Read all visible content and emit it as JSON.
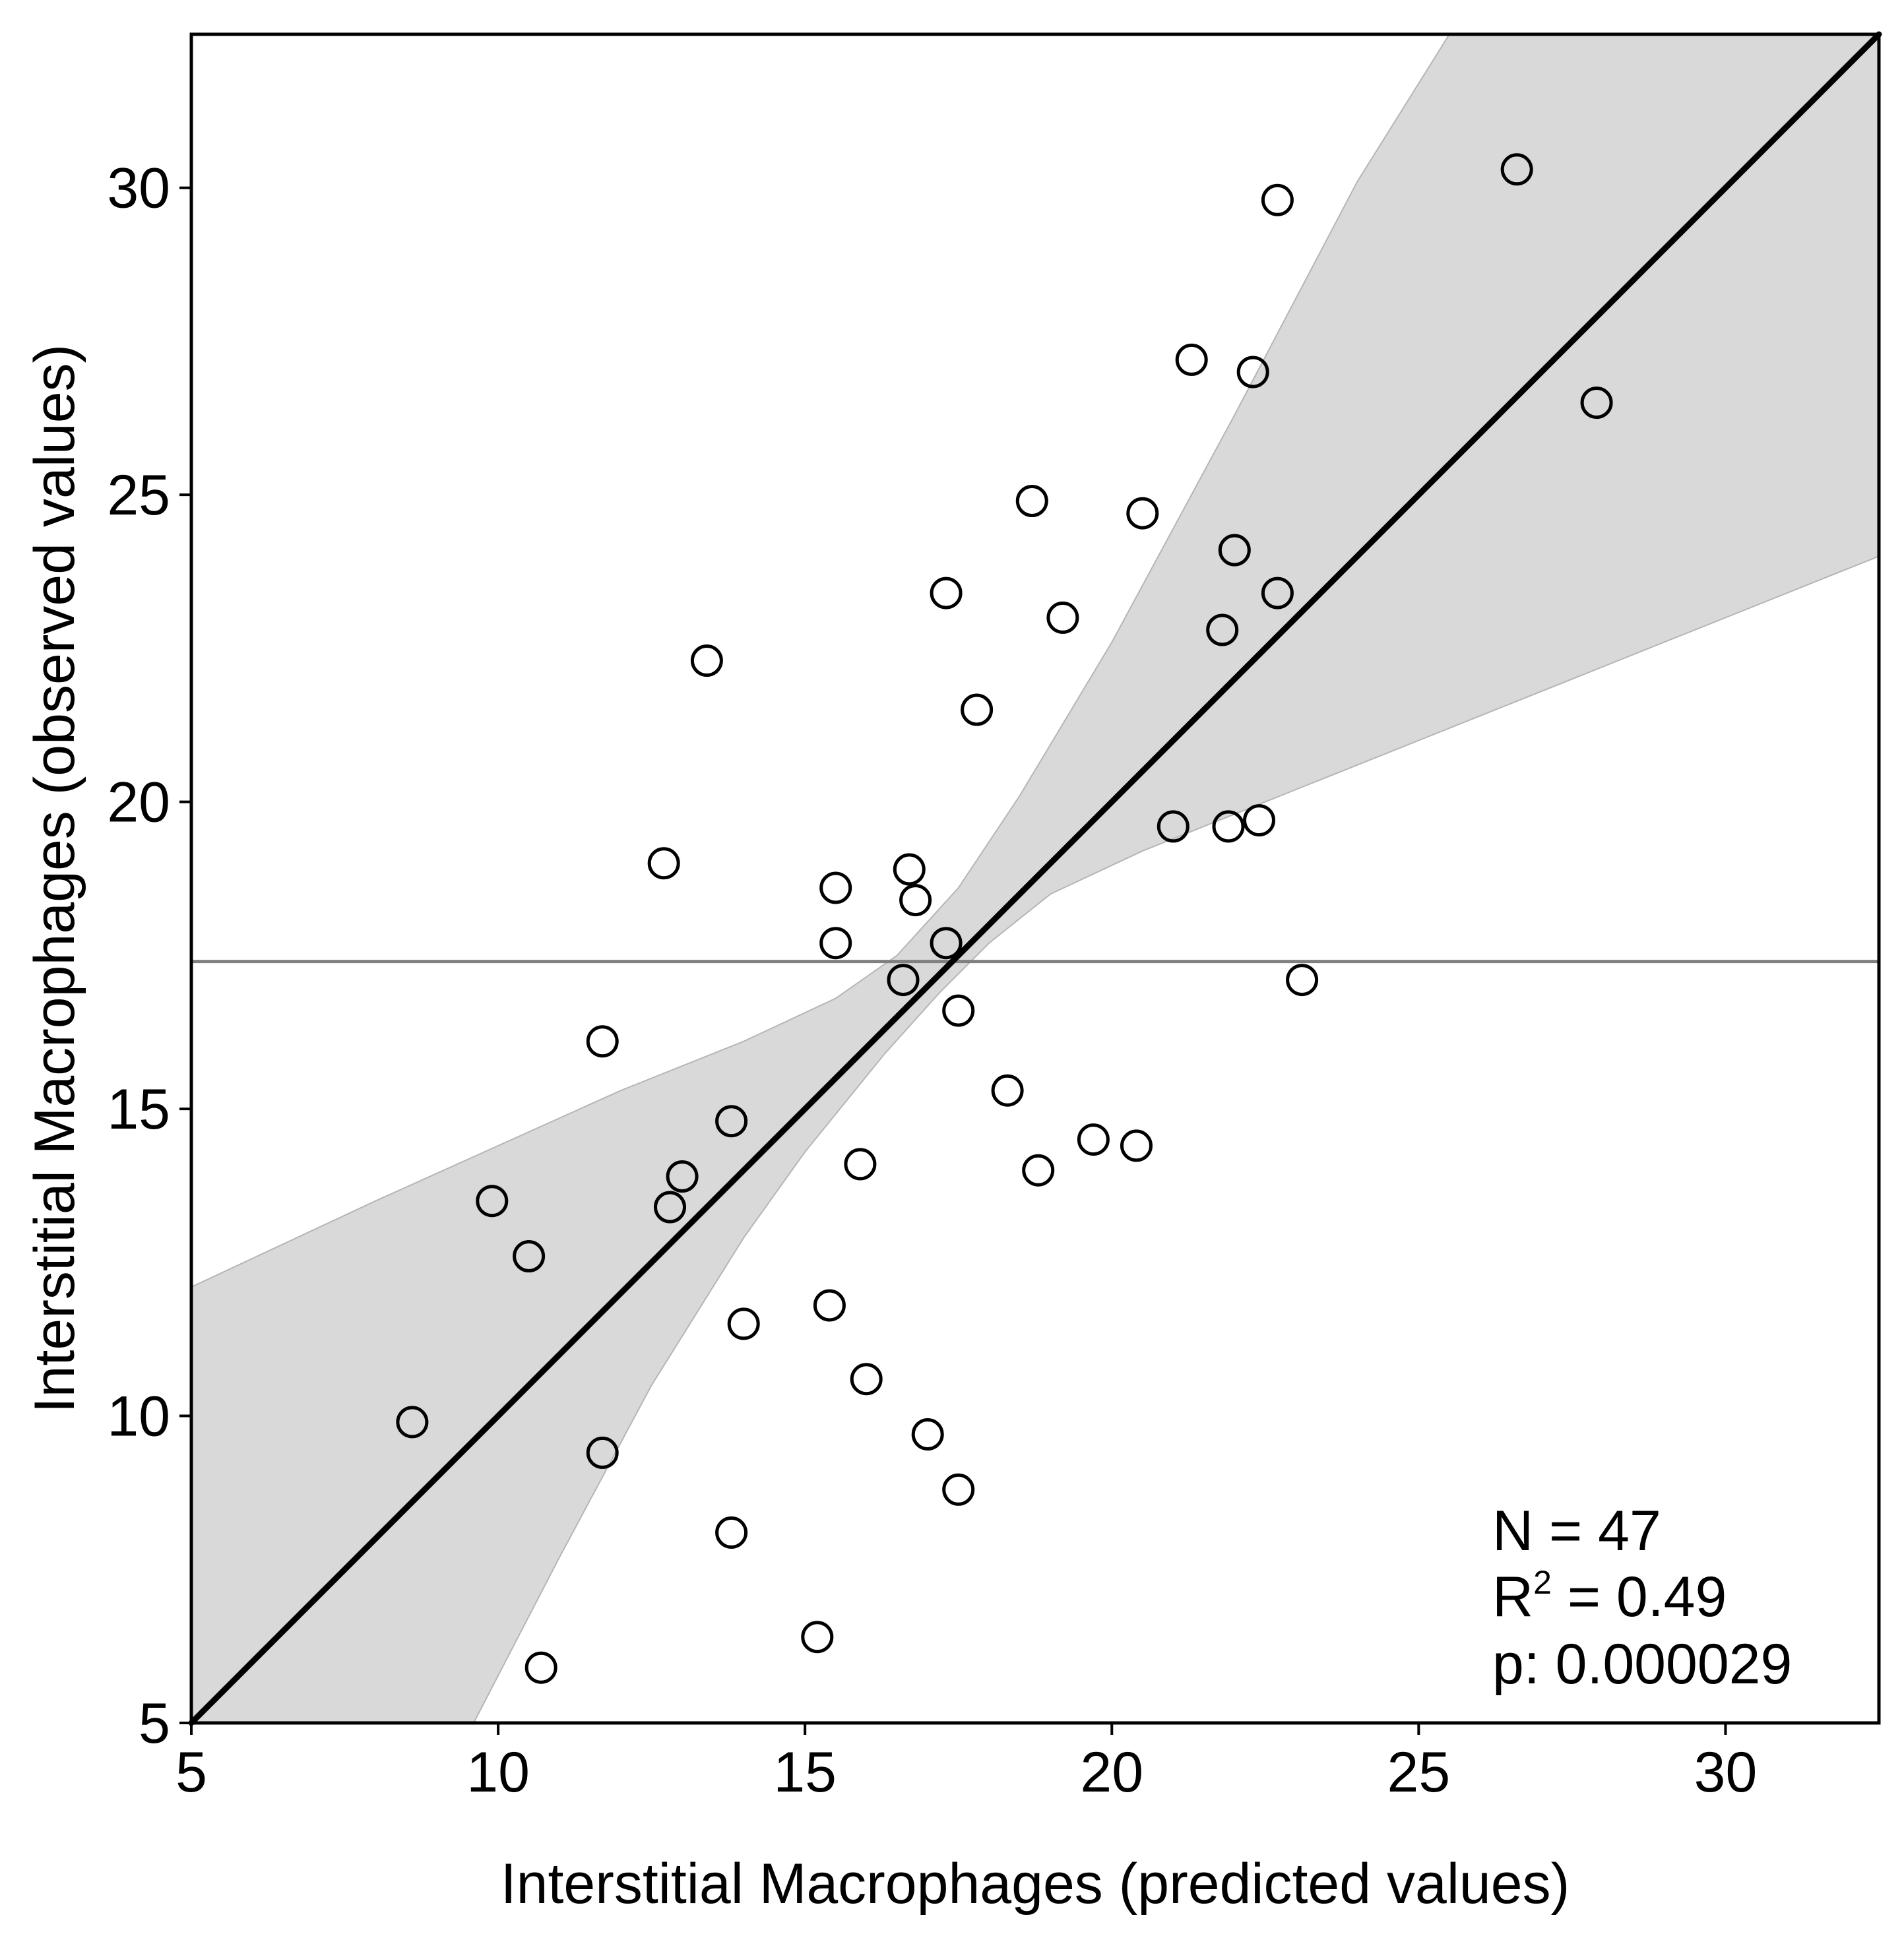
{
  "chart_data": {
    "type": "scatter",
    "xlabel": "Interstitial Macrophages (predicted values)",
    "ylabel": "Interstitial Macrophages (observed values)",
    "xlim": [
      5,
      32.5
    ],
    "ylim": [
      5,
      32.5
    ],
    "x_ticks": [
      5,
      10,
      15,
      20,
      25,
      30
    ],
    "y_ticks": [
      5,
      10,
      15,
      20,
      25,
      30
    ],
    "grid": false,
    "mean_line": {
      "y": 17.4,
      "color": "#808080"
    },
    "fit_line": {
      "from": [
        5,
        5
      ],
      "to": [
        32.5,
        32.5
      ],
      "color": "#000000"
    },
    "confidence_band": {
      "color": "#d9d9d9",
      "upper": [
        [
          5,
          12.1
        ],
        [
          8,
          13.5
        ],
        [
          10,
          14.4
        ],
        [
          12,
          15.3
        ],
        [
          14,
          16.1
        ],
        [
          15.5,
          16.8
        ],
        [
          16.5,
          17.5
        ],
        [
          17.5,
          18.6
        ],
        [
          18.5,
          20.1
        ],
        [
          20,
          22.6
        ],
        [
          22,
          26.3
        ],
        [
          24,
          30.1
        ],
        [
          25.5,
          32.5
        ]
      ],
      "lower": [
        [
          9.6,
          5
        ],
        [
          11,
          7.7
        ],
        [
          12.5,
          10.5
        ],
        [
          14,
          12.9
        ],
        [
          15,
          14.3
        ],
        [
          16.3,
          15.9
        ],
        [
          17.2,
          16.9
        ],
        [
          18,
          17.7
        ],
        [
          19,
          18.5
        ],
        [
          20.5,
          19.2
        ],
        [
          23,
          20.2
        ],
        [
          26,
          21.4
        ],
        [
          29,
          22.6
        ],
        [
          32.5,
          24
        ]
      ]
    },
    "series": [
      {
        "name": "observations",
        "points": [
          [
            8.6,
            9.9
          ],
          [
            9.9,
            13.5
          ],
          [
            10.5,
            12.6
          ],
          [
            10.7,
            5.9
          ],
          [
            11.7,
            9.4
          ],
          [
            11.7,
            16.1
          ],
          [
            12.7,
            19.0
          ],
          [
            12.8,
            13.4
          ],
          [
            13.0,
            13.9
          ],
          [
            13.4,
            22.3
          ],
          [
            13.8,
            8.1
          ],
          [
            13.8,
            14.8
          ],
          [
            14.0,
            11.5
          ],
          [
            15.2,
            6.4
          ],
          [
            15.4,
            11.8
          ],
          [
            15.5,
            17.7
          ],
          [
            15.5,
            18.6
          ],
          [
            15.9,
            14.1
          ],
          [
            16.0,
            10.6
          ],
          [
            16.6,
            17.1
          ],
          [
            16.7,
            18.9
          ],
          [
            16.8,
            18.4
          ],
          [
            17.0,
            9.7
          ],
          [
            17.3,
            17.7
          ],
          [
            17.3,
            23.4
          ],
          [
            17.5,
            8.8
          ],
          [
            17.5,
            16.6
          ],
          [
            17.8,
            21.5
          ],
          [
            18.3,
            15.3
          ],
          [
            18.7,
            24.9
          ],
          [
            18.8,
            14.0
          ],
          [
            19.2,
            23.0
          ],
          [
            19.7,
            14.5
          ],
          [
            20.4,
            14.4
          ],
          [
            20.5,
            24.7
          ],
          [
            21.0,
            19.6
          ],
          [
            21.3,
            27.2
          ],
          [
            21.8,
            22.8
          ],
          [
            21.9,
            19.6
          ],
          [
            22.0,
            24.1
          ],
          [
            22.3,
            27.0
          ],
          [
            22.4,
            19.7
          ],
          [
            22.7,
            23.4
          ],
          [
            22.7,
            29.8
          ],
          [
            23.1,
            17.1
          ],
          [
            26.6,
            30.3
          ],
          [
            27.9,
            26.5
          ]
        ]
      }
    ],
    "annotations": {
      "n_label": "N = 47",
      "r2_prefix": "R",
      "r2_sup": "2",
      "r2_value": " = 0.49",
      "p_label": "p: 0.000029"
    }
  }
}
